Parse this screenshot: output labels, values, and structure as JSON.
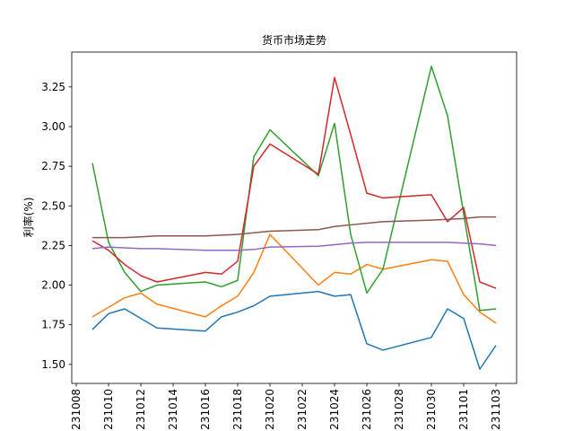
{
  "chart_data": {
    "type": "line",
    "title": "货币市场走势",
    "ylabel": "利率(%)",
    "x": [
      "2023-10-09",
      "2023-10-10",
      "2023-10-11",
      "2023-10-12",
      "2023-10-13",
      "2023-10-16",
      "2023-10-17",
      "2023-10-18",
      "2023-10-19",
      "2023-10-20",
      "2023-10-23",
      "2023-10-24",
      "2023-10-25",
      "2023-10-26",
      "2023-10-27",
      "2023-10-30",
      "2023-10-31",
      "2023-11-01",
      "2023-11-02",
      "2023-11-03"
    ],
    "series": [
      {
        "color": "#1f77b4",
        "values": [
          1.72,
          1.82,
          1.85,
          1.79,
          1.73,
          1.71,
          1.8,
          1.83,
          1.87,
          1.93,
          1.96,
          1.93,
          1.94,
          1.63,
          1.59,
          1.67,
          1.85,
          1.79,
          1.47,
          1.62
        ]
      },
      {
        "color": "#ff7f0e",
        "values": [
          1.8,
          1.86,
          1.92,
          1.95,
          1.88,
          1.8,
          1.87,
          1.93,
          2.08,
          2.32,
          2.0,
          2.08,
          2.07,
          2.13,
          2.1,
          2.16,
          2.15,
          1.94,
          1.83,
          1.76
        ]
      },
      {
        "color": "#2ca02c",
        "values": [
          2.77,
          2.27,
          2.08,
          1.96,
          2.0,
          2.02,
          1.99,
          2.03,
          2.81,
          2.98,
          2.69,
          3.02,
          2.32,
          1.95,
          2.1,
          3.38,
          3.07,
          2.45,
          1.84,
          1.85
        ]
      },
      {
        "color": "#d62728",
        "values": [
          2.28,
          2.22,
          2.13,
          2.06,
          2.02,
          2.08,
          2.07,
          2.15,
          2.75,
          2.89,
          2.7,
          3.31,
          2.95,
          2.58,
          2.55,
          2.57,
          2.4,
          2.49,
          2.02,
          1.98
        ]
      },
      {
        "color": "#9467bd",
        "values": [
          2.23,
          2.24,
          2.235,
          2.23,
          2.23,
          2.22,
          2.22,
          2.22,
          2.225,
          2.24,
          2.245,
          2.255,
          2.265,
          2.27,
          2.27,
          2.27,
          2.27,
          2.265,
          2.26,
          2.25
        ]
      },
      {
        "color": "#8c564b",
        "values": [
          2.3,
          2.3,
          2.3,
          2.305,
          2.31,
          2.31,
          2.315,
          2.32,
          2.33,
          2.34,
          2.35,
          2.37,
          2.38,
          2.39,
          2.4,
          2.41,
          2.415,
          2.42,
          2.43,
          2.43
        ]
      }
    ],
    "xlim": [
      "2023-10-07T17:18",
      "2023-11-04T06:42"
    ],
    "xticks": [
      {
        "value": "2023-10-08",
        "label": "231008"
      },
      {
        "value": "2023-10-10",
        "label": "231010"
      },
      {
        "value": "2023-10-12",
        "label": "231012"
      },
      {
        "value": "2023-10-14",
        "label": "231014"
      },
      {
        "value": "2023-10-16",
        "label": "231016"
      },
      {
        "value": "2023-10-18",
        "label": "231018"
      },
      {
        "value": "2023-10-20",
        "label": "231020"
      },
      {
        "value": "2023-10-22",
        "label": "231022"
      },
      {
        "value": "2023-10-24",
        "label": "231024"
      },
      {
        "value": "2023-10-26",
        "label": "231026"
      },
      {
        "value": "2023-10-28",
        "label": "231028"
      },
      {
        "value": "2023-10-30",
        "label": "231030"
      },
      {
        "value": "2023-11-01",
        "label": "231101"
      },
      {
        "value": "2023-11-03",
        "label": "231103"
      }
    ],
    "ylim": [
      1.38,
      3.47
    ],
    "yticks": [
      {
        "value": 1.5,
        "label": "1.50"
      },
      1.75,
      {
        "value": 2,
        "label": "2.00"
      },
      2.25,
      {
        "value": 2.5,
        "label": "2.50"
      },
      2.75,
      {
        "value": 3,
        "label": "3.00"
      },
      3.25
    ],
    "grid": false
  }
}
